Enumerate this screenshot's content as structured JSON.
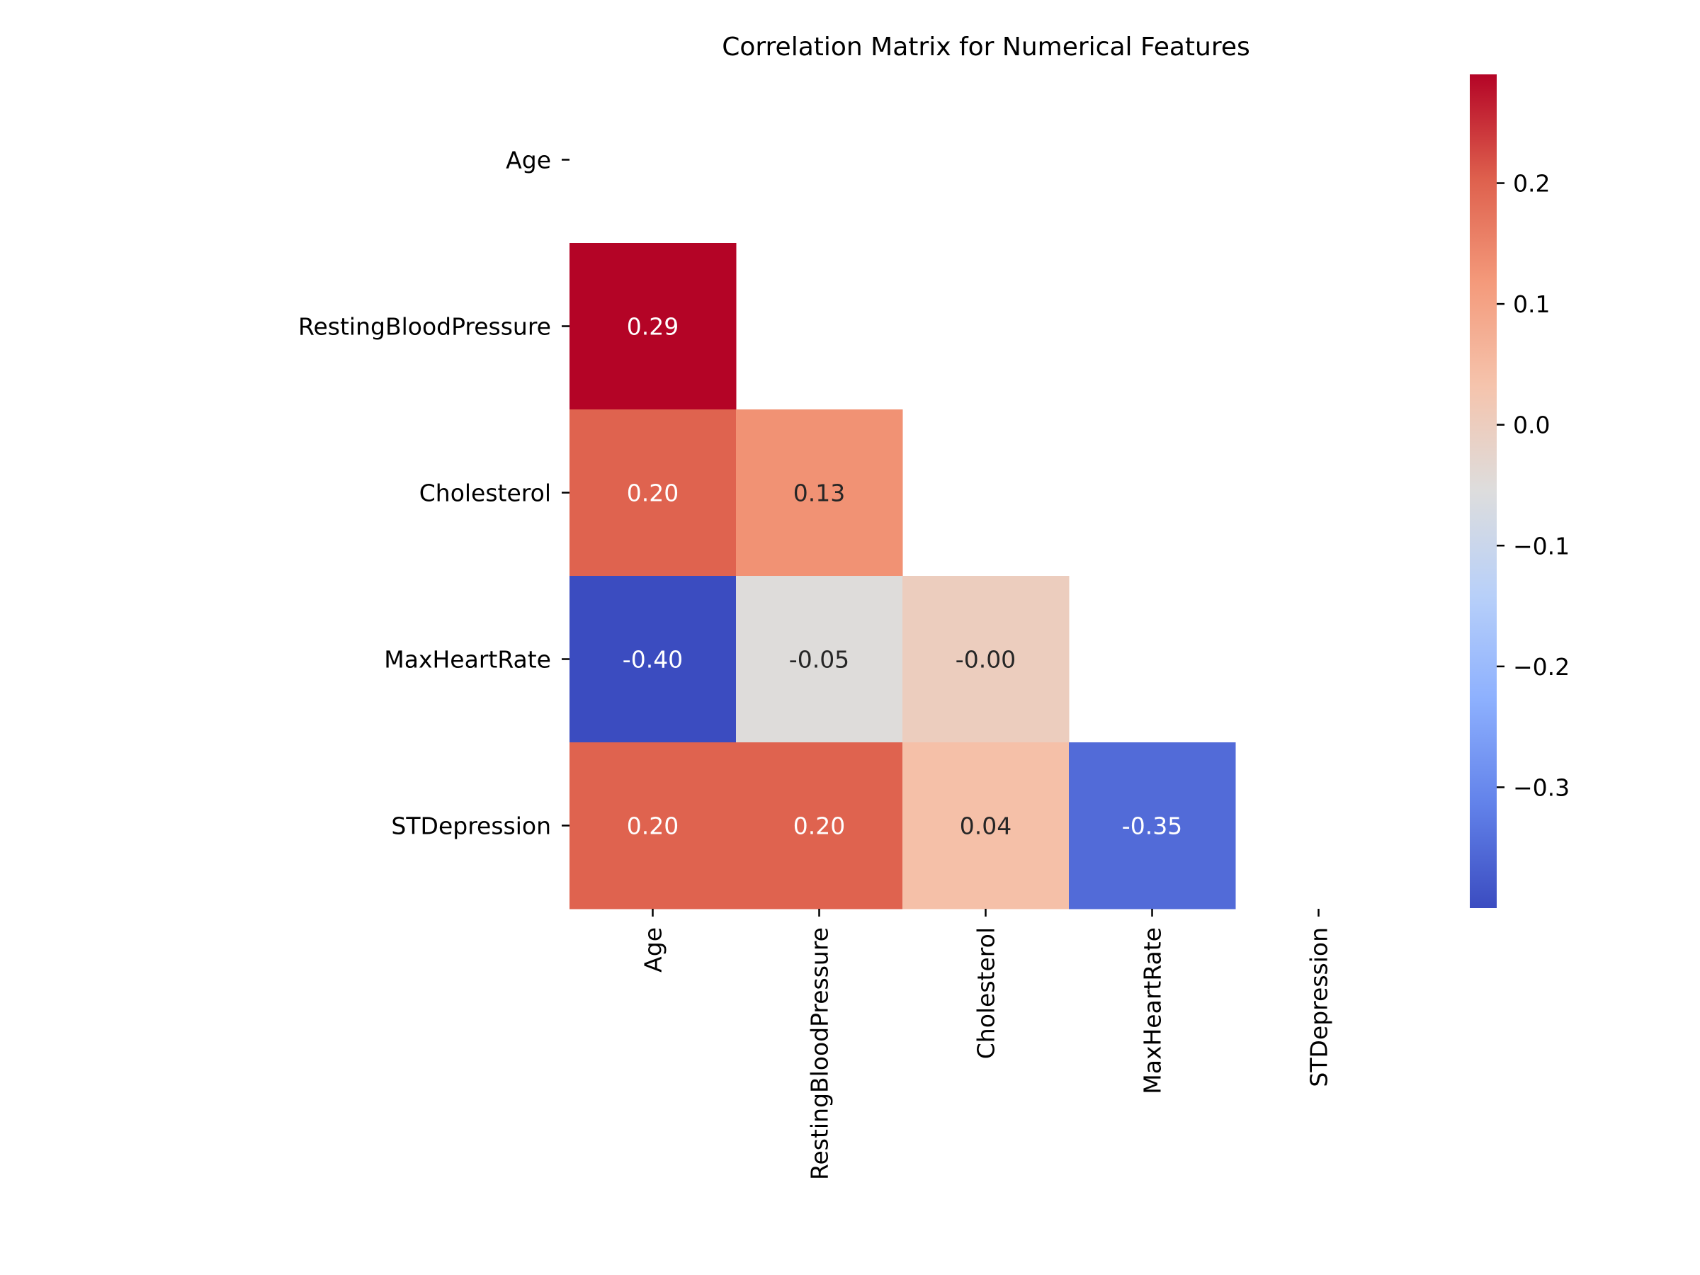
{
  "chart_data": {
    "type": "heatmap",
    "title": "Correlation Matrix for Numerical Features",
    "labels": [
      "Age",
      "RestingBloodPressure",
      "Cholesterol",
      "MaxHeartRate",
      "STDepression"
    ],
    "mask": "upper-triangle-including-diagonal",
    "cells": [
      {
        "row": "RestingBloodPressure",
        "col": "Age",
        "value": 0.29,
        "label": "0.29"
      },
      {
        "row": "Cholesterol",
        "col": "Age",
        "value": 0.2,
        "label": "0.20"
      },
      {
        "row": "Cholesterol",
        "col": "RestingBloodPressure",
        "value": 0.13,
        "label": "0.13"
      },
      {
        "row": "MaxHeartRate",
        "col": "Age",
        "value": -0.4,
        "label": "-0.40"
      },
      {
        "row": "MaxHeartRate",
        "col": "RestingBloodPressure",
        "value": -0.05,
        "label": "-0.05"
      },
      {
        "row": "MaxHeartRate",
        "col": "Cholesterol",
        "value": -0.0,
        "label": "-0.00"
      },
      {
        "row": "STDepression",
        "col": "Age",
        "value": 0.2,
        "label": "0.20"
      },
      {
        "row": "STDepression",
        "col": "RestingBloodPressure",
        "value": 0.2,
        "label": "0.20"
      },
      {
        "row": "STDepression",
        "col": "Cholesterol",
        "value": 0.04,
        "label": "0.04"
      },
      {
        "row": "STDepression",
        "col": "MaxHeartRate",
        "value": -0.35,
        "label": "-0.35"
      }
    ],
    "colormap": "coolwarm",
    "colorbar": {
      "vmin": -0.4,
      "vmax": 0.29,
      "ticks": [
        0.2,
        0.1,
        0.0,
        -0.1,
        -0.2,
        -0.3
      ],
      "tick_labels": [
        "0.2",
        "0.1",
        "0.0",
        "−0.1",
        "−0.2",
        "−0.3"
      ]
    }
  }
}
